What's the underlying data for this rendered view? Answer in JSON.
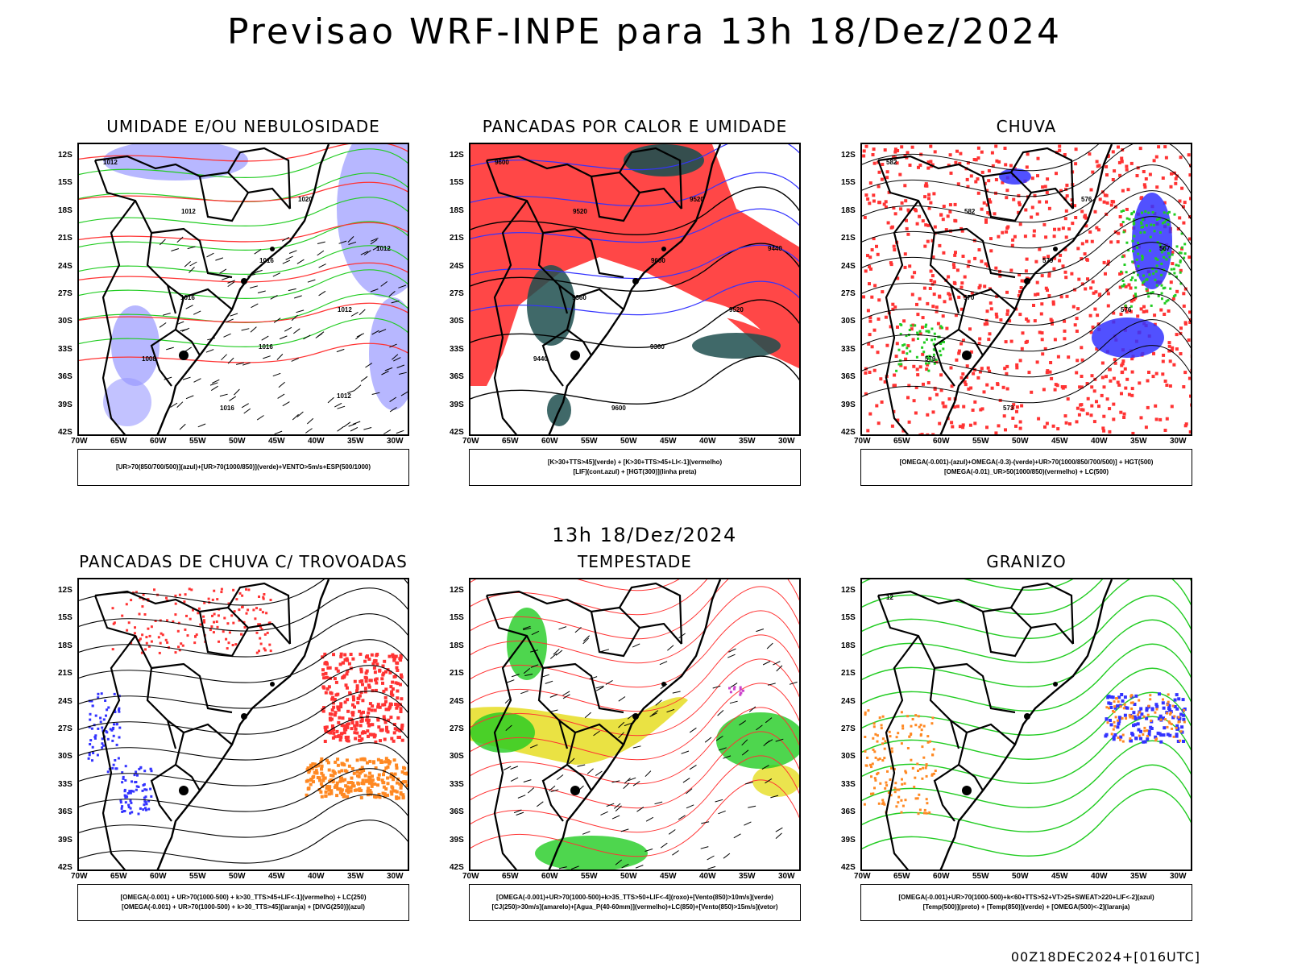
{
  "title": "Previsao WRF-INPE  para 13h 18/Dez/2024",
  "subtitle": "13h 18/Dez/2024",
  "footer": "00Z18DEC2024+[016UTC]",
  "latitudes": [
    "12S",
    "15S",
    "18S",
    "21S",
    "24S",
    "27S",
    "30S",
    "33S",
    "36S",
    "39S",
    "42S"
  ],
  "longitudes": [
    "70W",
    "65W",
    "60W",
    "55W",
    "50W",
    "45W",
    "40W",
    "35W",
    "30W"
  ],
  "colors": {
    "blue": "#3333ff",
    "light_blue": "#9999ff",
    "green": "#22cc22",
    "red": "#ff3333",
    "dark_teal": "#1f4f4f",
    "yellow": "#e6dd22",
    "orange": "#ff8822",
    "purple": "#cc44cc"
  },
  "panels": [
    {
      "title": "UMIDADE E/OU NEBULOSIDADE",
      "legend": [
        "[UR>70(850/700/500)](azul)+[UR>70(1000/850)](verde)+VENTO>5m/s+ESP(500/1000)"
      ],
      "contours": [
        "1012",
        "1012",
        "1016",
        "1012",
        "1008",
        "1016",
        "1020",
        "1012",
        "1016",
        "1016",
        "1012"
      ]
    },
    {
      "title": "PANCADAS POR CALOR E UMIDADE",
      "legend": [
        "[K>30+TTS>45](verde) + [K>30+TTS>45+LI<-1](vermelho)",
        "[LIF](cont.azul) + [HGT(300)](linha preta)"
      ],
      "contours": [
        "9600",
        "9520",
        "9600",
        "9520",
        "9440",
        "9600",
        "9520",
        "9440",
        "9360",
        "9360"
      ]
    },
    {
      "title": "CHUVA",
      "legend": [
        "[OMEGA(-0.001)-(azul)+OMEGA(-0.3)-(verde)+UR>70(1000/850/700/500)] + HGT(500)",
        "[OMEGA(-0.01)_UR>50(1000/850)(vermelho) + LC(500)"
      ],
      "contours": [
        "582",
        "582",
        "579",
        "576",
        "579",
        "573",
        "576",
        "567",
        "570"
      ]
    },
    {
      "title": "PANCADAS DE CHUVA C/ TROVOADAS",
      "legend": [
        "[OMEGA(-0.001) + UR>70(1000-500) + k>30_TTS>45+LIF<-1](vermelho) + LC(250)",
        "[OMEGA(-0.001) + UR>70(1000-500) + k>30_TTS>45](laranja) + [DIVG(250)](azul)"
      ],
      "contours": []
    },
    {
      "title": "TEMPESTADE",
      "legend": [
        "[OMEGA(-0.001)+UR>70(1000-500)+k>35_TTS>50+LIF<-4](roxo)+[Vento(850)>10m/s](verde)",
        "[CJ(250)>30m/s](amarelo)+[Agua_P(40-60mm)](vermelho)+LC(850)+[Vento(850)>15m/s](vetor)"
      ],
      "contours": []
    },
    {
      "title": "GRANIZO",
      "legend": [
        "[OMEGA(-0.001)+UR>70(1000-500)+k<60+TTS>52+VT>25+SWEAT>220+LIF<-2](azul)",
        "[Temp(500)](preto) + [Temp(850)](verde) + [OMEGA(500)<-2](laranja)"
      ],
      "contours": [
        "12"
      ]
    }
  ]
}
